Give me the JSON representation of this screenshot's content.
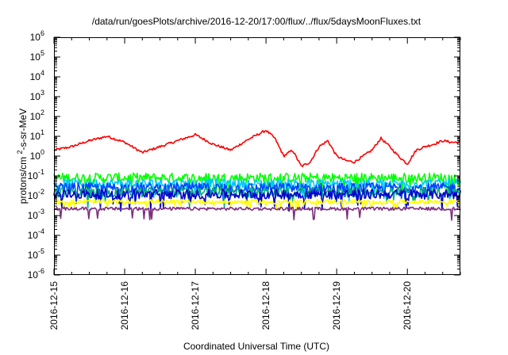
{
  "chart_data": {
    "type": "line",
    "title": "/data/run/goesPlots/archive/2016-12-20/17:00/flux/../flux/5daysMoonFluxes.txt",
    "xlabel": "Coordinated Universal Time (UTC)",
    "ylabel": "protons/cm²-s-sr-MeV",
    "y_scale": "log",
    "ylim": [
      1e-06,
      1000000.0
    ],
    "xlim": [
      "2016-12-15",
      "2016-12-20T18:00"
    ],
    "x_ticks": [
      "2016-12-15",
      "2016-12-16",
      "2016-12-17",
      "2016-12-18",
      "2016-12-19",
      "2016-12-20"
    ],
    "y_ticks": [
      {
        "base": "10",
        "exp": "-6"
      },
      {
        "base": "10",
        "exp": "-5"
      },
      {
        "base": "10",
        "exp": "-4"
      },
      {
        "base": "10",
        "exp": "-3"
      },
      {
        "base": "10",
        "exp": "-2"
      },
      {
        "base": "10",
        "exp": "-1"
      },
      {
        "base": "10",
        "exp": "0"
      },
      {
        "base": "10",
        "exp": "1"
      },
      {
        "base": "10",
        "exp": "2"
      },
      {
        "base": "10",
        "exp": "3"
      },
      {
        "base": "10",
        "exp": "4"
      },
      {
        "base": "10",
        "exp": "5"
      },
      {
        "base": "10",
        "exp": "6"
      }
    ],
    "grid": false,
    "legend": "none",
    "series": [
      {
        "color": "#ff0000",
        "noise": 0.06,
        "x": [
          "2016-12-15T00:00",
          "2016-12-15T06:00",
          "2016-12-15T12:00",
          "2016-12-15T18:00",
          "2016-12-16T00:00",
          "2016-12-16T06:00",
          "2016-12-16T12:00",
          "2016-12-16T18:00",
          "2016-12-17T00:00",
          "2016-12-17T06:00",
          "2016-12-17T12:00",
          "2016-12-17T18:00",
          "2016-12-18T00:00",
          "2016-12-18T03:00",
          "2016-12-18T06:00",
          "2016-12-18T09:00",
          "2016-12-18T12:00",
          "2016-12-18T15:00",
          "2016-12-18T18:00",
          "2016-12-18T21:00",
          "2016-12-19T00:00",
          "2016-12-19T03:00",
          "2016-12-19T06:00",
          "2016-12-19T09:00",
          "2016-12-19T12:00",
          "2016-12-19T15:00",
          "2016-12-19T18:00",
          "2016-12-19T21:00",
          "2016-12-20T00:00",
          "2016-12-20T03:00",
          "2016-12-20T06:00",
          "2016-12-20T09:00",
          "2016-12-20T12:00",
          "2016-12-20T15:00",
          "2016-12-20T18:00"
        ],
        "y": [
          2,
          3,
          6,
          10,
          5,
          1.5,
          3,
          6,
          12,
          4,
          2,
          7,
          20,
          8,
          1,
          2,
          0.3,
          0.5,
          3,
          6,
          1,
          0.6,
          0.5,
          1,
          2,
          8,
          3,
          1,
          0.4,
          2,
          3,
          4,
          6,
          5,
          5
        ]
      },
      {
        "color": "#00ff00",
        "x": [
          "2016-12-15T00:00",
          "2016-12-20T18:00"
        ],
        "y": [
          0.08,
          0.08
        ],
        "noise": 0.25
      },
      {
        "color": "#00c8ff",
        "x": [
          "2016-12-15T00:00",
          "2016-12-20T18:00"
        ],
        "y": [
          0.04,
          0.04
        ],
        "noise": 0.25
      },
      {
        "color": "#0040ff",
        "x": [
          "2016-12-15T00:00",
          "2016-12-20T18:00"
        ],
        "y": [
          0.025,
          0.025
        ],
        "noise": 0.25
      },
      {
        "color": "#00aa88",
        "x": [
          "2016-12-15T00:00",
          "2016-12-20T18:00"
        ],
        "y": [
          0.015,
          0.015
        ],
        "noise": 0.25
      },
      {
        "color": "#0000cc",
        "x": [
          "2016-12-15T00:00",
          "2016-12-20T18:00"
        ],
        "y": [
          0.012,
          0.012
        ],
        "noise": 0.25
      },
      {
        "color": "#ffff00",
        "x": [
          "2016-12-15T00:00",
          "2016-12-20T18:00"
        ],
        "y": [
          0.005,
          0.005
        ],
        "noise": 0.12
      },
      {
        "color": "#7f2f7f",
        "x": [
          "2016-12-15T00:00",
          "2016-12-20T18:00"
        ],
        "y": [
          0.0022,
          0.0022
        ],
        "noise": 0.08
      }
    ]
  }
}
